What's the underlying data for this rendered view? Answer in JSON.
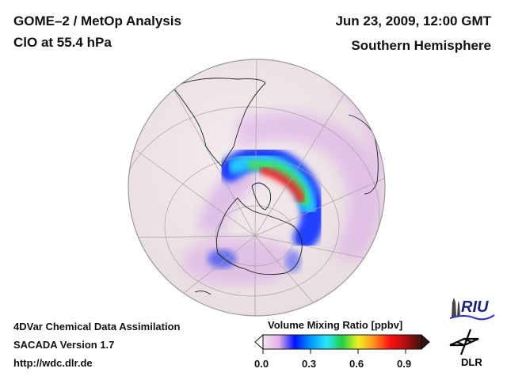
{
  "header": {
    "title": "GOME–2 / MetOp Analysis",
    "species_level": "ClO at 55.4 hPa",
    "datetime": "Jun 23, 2009, 12:00 GMT",
    "region": "Southern Hemisphere"
  },
  "footer": {
    "line1": "4DVar Chemical Data Assimilation",
    "line2": "SACADA Version 1.7",
    "line3": "http://wdc.dlr.de"
  },
  "colorbar": {
    "title": "Volume Mixing Ratio [ppbv]",
    "ticks": [
      "0.0",
      "0.3",
      "0.6",
      "0.9"
    ],
    "range": [
      0.0,
      1.0
    ],
    "extend": "both",
    "colors": [
      "#f2e6ec",
      "#e3b0e6",
      "#0014ff",
      "#0096ff",
      "#28e6ff",
      "#20d040",
      "#f0f020",
      "#ff9020",
      "#ff1010",
      "#b01010",
      "#401010"
    ]
  },
  "logos": {
    "riu": "RIU",
    "dlr": "DLR"
  },
  "map": {
    "projection": "orthographic",
    "hemisphere": "south",
    "ocean_color": "#efe4e6",
    "feature": "High ClO band along the Antarctic vortex edge over the Antarctic Peninsula / Weddell Sea sector",
    "peak_value_ppbv": 0.9
  }
}
